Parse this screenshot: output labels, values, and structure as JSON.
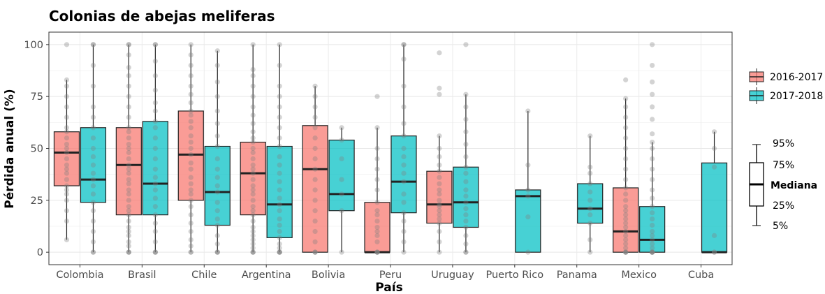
{
  "chart_data": {
    "type": "boxplot",
    "title": "Colonias de abejas meliferas",
    "xlabel": "País",
    "ylabel": "Pérdida anual (%)",
    "ylim": [
      -6,
      106
    ],
    "yticks": [
      0,
      25,
      50,
      75,
      100
    ],
    "grid": true,
    "legend_position": "right",
    "categories": [
      "Colombia",
      "Brasil",
      "Chile",
      "Argentina",
      "Bolivia",
      "Peru",
      "Uruguay",
      "Puerto Rico",
      "Panama",
      "Mexico",
      "Cuba"
    ],
    "series": [
      {
        "name": "2016-2017",
        "color": "#F8766D",
        "boxes": [
          {
            "category": "Colombia",
            "q1": 32,
            "median": 48,
            "q3": 58,
            "whisker_low": 6,
            "whisker_high": 83,
            "points": [
              6,
              15,
              20,
              25,
              28,
              30,
              32,
              35,
              38,
              40,
              42,
              45,
              48,
              50,
              52,
              55,
              58,
              60,
              65,
              70,
              75,
              80,
              83,
              100
            ]
          },
          {
            "category": "Brasil",
            "q1": 18,
            "median": 42,
            "q3": 60,
            "whisker_low": 0,
            "whisker_high": 100,
            "points": [
              0,
              0,
              0,
              3,
              5,
              8,
              10,
              12,
              15,
              18,
              20,
              22,
              25,
              28,
              30,
              33,
              35,
              38,
              40,
              42,
              45,
              48,
              50,
              52,
              55,
              58,
              60,
              65,
              70,
              75,
              80,
              85,
              89,
              95,
              100,
              100
            ]
          },
          {
            "category": "Chile",
            "q1": 25,
            "median": 47,
            "q3": 68,
            "whisker_low": 0,
            "whisker_high": 100,
            "points": [
              0,
              0,
              3,
              6,
              10,
              14,
              18,
              22,
              25,
              28,
              30,
              33,
              36,
              40,
              43,
              47,
              50,
              53,
              56,
              60,
              63,
              66,
              68,
              72,
              76,
              80,
              85,
              90,
              95,
              100
            ]
          },
          {
            "category": "Argentina",
            "q1": 18,
            "median": 38,
            "q3": 53,
            "whisker_low": 0,
            "whisker_high": 100,
            "points": [
              0,
              0,
              0,
              2,
              4,
              6,
              8,
              10,
              12,
              15,
              18,
              20,
              22,
              25,
              28,
              30,
              32,
              35,
              38,
              40,
              42,
              45,
              48,
              50,
              53,
              55,
              58,
              62,
              66,
              70,
              75,
              80,
              85,
              88,
              100
            ]
          },
          {
            "category": "Bolivia",
            "q1": 0,
            "median": 40,
            "q3": 61,
            "whisker_low": 0,
            "whisker_high": 80,
            "points": [
              0,
              0,
              0,
              5,
              10,
              15,
              20,
              25,
              30,
              35,
              40,
              45,
              50,
              55,
              60,
              65,
              70,
              75,
              80
            ]
          },
          {
            "category": "Peru",
            "q1": 0,
            "median": 0,
            "q3": 24,
            "whisker_low": 0,
            "whisker_high": 60,
            "points": [
              0,
              0,
              0,
              0,
              5,
              8,
              10,
              12,
              15,
              18,
              20,
              24,
              30,
              35,
              40,
              45,
              50,
              60,
              75
            ]
          },
          {
            "category": "Uruguay",
            "q1": 14,
            "median": 23,
            "q3": 39,
            "whisker_low": 0,
            "whisker_high": 56,
            "points": [
              0,
              5,
              10,
              14,
              16,
              18,
              20,
              22,
              23,
              25,
              28,
              30,
              33,
              36,
              39,
              42,
              46,
              50,
              56,
              76,
              79,
              96
            ]
          },
          {
            "category": "Mexico",
            "q1": 0,
            "median": 10,
            "q3": 31,
            "whisker_low": 0,
            "whisker_high": 74,
            "points": [
              0,
              0,
              0,
              0,
              2,
              4,
              6,
              8,
              10,
              12,
              14,
              16,
              18,
              20,
              22,
              25,
              28,
              31,
              35,
              40,
              45,
              50,
              55,
              60,
              65,
              70,
              74,
              83
            ]
          }
        ]
      },
      {
        "name": "2017-2018",
        "color": "#00BFC4",
        "boxes": [
          {
            "category": "Colombia",
            "q1": 24,
            "median": 35,
            "q3": 60,
            "whisker_low": 0,
            "whisker_high": 100,
            "points": [
              0,
              0,
              5,
              10,
              15,
              20,
              24,
              28,
              32,
              35,
              38,
              42,
              46,
              50,
              55,
              60,
              65,
              70,
              80,
              90,
              100,
              100
            ]
          },
          {
            "category": "Brasil",
            "q1": 18,
            "median": 33,
            "q3": 63,
            "whisker_low": 0,
            "whisker_high": 100,
            "points": [
              0,
              0,
              0,
              5,
              10,
              14,
              18,
              22,
              26,
              30,
              33,
              36,
              40,
              45,
              50,
              55,
              60,
              63,
              68,
              72,
              78,
              85,
              92,
              100,
              100
            ]
          },
          {
            "category": "Chile",
            "q1": 13,
            "median": 29,
            "q3": 51,
            "whisker_low": 0,
            "whisker_high": 97,
            "points": [
              0,
              0,
              0,
              4,
              8,
              13,
              16,
              20,
              24,
              29,
              32,
              36,
              40,
              45,
              51,
              56,
              62,
              68,
              75,
              82,
              90,
              97
            ]
          },
          {
            "category": "Argentina",
            "q1": 7,
            "median": 23,
            "q3": 51,
            "whisker_low": 0,
            "whisker_high": 100,
            "points": [
              0,
              0,
              0,
              0,
              2,
              4,
              7,
              10,
              13,
              16,
              20,
              23,
              26,
              30,
              34,
              38,
              42,
              46,
              51,
              55,
              60,
              65,
              70,
              75,
              80,
              90,
              100
            ]
          },
          {
            "category": "Bolivia",
            "q1": 20,
            "median": 28,
            "q3": 54,
            "whisker_low": 0,
            "whisker_high": 60,
            "points": [
              0,
              20,
              28,
              35,
              45,
              54,
              60
            ]
          },
          {
            "category": "Peru",
            "q1": 19,
            "median": 34,
            "q3": 56,
            "whisker_low": 0,
            "whisker_high": 100,
            "points": [
              0,
              5,
              10,
              15,
              19,
              24,
              28,
              34,
              38,
              42,
              46,
              50,
              56,
              62,
              70,
              80,
              93,
              100,
              100
            ]
          },
          {
            "category": "Uruguay",
            "q1": 12,
            "median": 24,
            "q3": 41,
            "whisker_low": 0,
            "whisker_high": 76,
            "points": [
              0,
              0,
              4,
              8,
              12,
              15,
              18,
              21,
              24,
              27,
              30,
              34,
              38,
              41,
              46,
              52,
              58,
              64,
              70,
              76,
              100
            ]
          },
          {
            "category": "Puerto Rico",
            "q1": 0,
            "median": 27,
            "q3": 30,
            "whisker_low": 0,
            "whisker_high": 68,
            "points": [
              0,
              17,
              27,
              30,
              42,
              68
            ]
          },
          {
            "category": "Panama",
            "q1": 14,
            "median": 21,
            "q3": 33,
            "whisker_low": 0,
            "whisker_high": 56,
            "points": [
              0,
              6,
              14,
              18,
              21,
              25,
              29,
              33,
              38,
              41,
              56
            ]
          },
          {
            "category": "Mexico",
            "q1": 0,
            "median": 6,
            "q3": 22,
            "whisker_low": 0,
            "whisker_high": 53,
            "points": [
              0,
              0,
              0,
              0,
              0,
              2,
              4,
              6,
              8,
              10,
              13,
              16,
              19,
              22,
              26,
              30,
              35,
              40,
              45,
              50,
              53,
              57,
              64,
              70,
              76,
              82,
              90,
              100
            ]
          },
          {
            "category": "Cuba",
            "q1": 0,
            "median": 0,
            "q3": 43,
            "whisker_low": 0,
            "whisker_high": 58,
            "points": [
              0,
              0,
              8,
              41,
              50,
              58
            ]
          }
        ]
      }
    ],
    "legend": {
      "entries": [
        "2016-2017",
        "2017-2018"
      ]
    },
    "guide": {
      "labels": [
        "95%",
        "75%",
        "Mediana",
        "25%",
        "5%"
      ]
    }
  }
}
